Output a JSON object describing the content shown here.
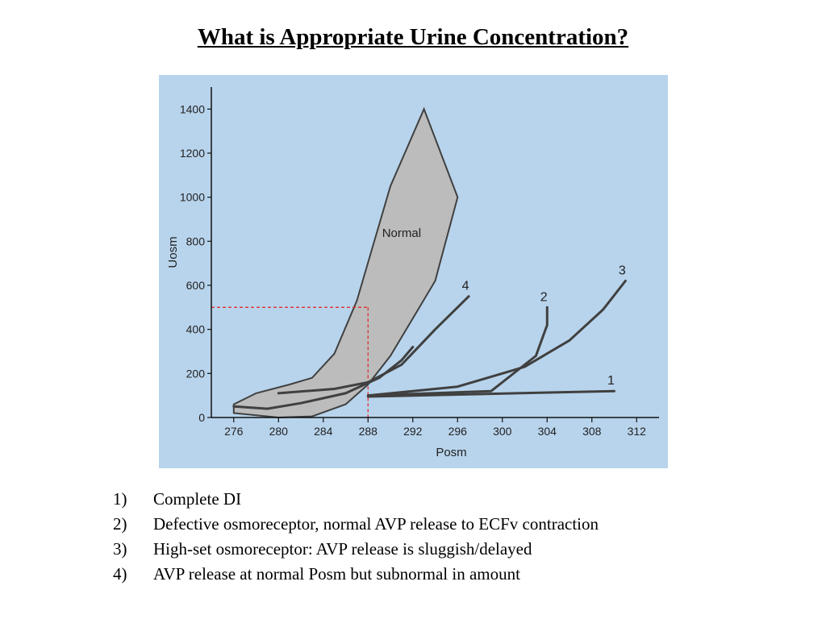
{
  "title": "What is Appropriate Urine Concentration?",
  "colors": {
    "figure_background": "#b8d4ec",
    "normal_band_fill": "#bcbcbc",
    "curve": "#404040",
    "reference_line": "#e03030"
  },
  "chart_data": {
    "type": "line",
    "xlabel": "Posm",
    "ylabel": "Uosm",
    "xlim": [
      274,
      314
    ],
    "ylim": [
      0,
      1500
    ],
    "xticks": [
      276,
      280,
      284,
      288,
      292,
      296,
      300,
      304,
      308,
      312
    ],
    "yticks": [
      0,
      200,
      400,
      600,
      800,
      1000,
      1200,
      1400
    ],
    "grid": false,
    "normal_region": {
      "label": "Normal",
      "upper": [
        [
          276,
          60
        ],
        [
          278,
          110
        ],
        [
          281,
          150
        ],
        [
          283,
          180
        ],
        [
          285,
          290
        ],
        [
          287,
          530
        ],
        [
          290,
          1050
        ],
        [
          293,
          1400
        ]
      ],
      "lower": [
        [
          276,
          20
        ],
        [
          280,
          0
        ],
        [
          283,
          5
        ],
        [
          286,
          60
        ],
        [
          288,
          150
        ],
        [
          290,
          280
        ],
        [
          292,
          450
        ],
        [
          294,
          620
        ],
        [
          296,
          1000
        ]
      ]
    },
    "series": [
      {
        "name": "1",
        "values": [
          [
            288,
            95
          ],
          [
            310,
            120
          ]
        ]
      },
      {
        "name": "2",
        "values": [
          [
            288,
            100
          ],
          [
            299,
            120
          ],
          [
            303,
            280
          ],
          [
            304,
            420
          ],
          [
            304,
            500
          ]
        ]
      },
      {
        "name": "3",
        "values": [
          [
            288,
            100
          ],
          [
            296,
            140
          ],
          [
            302,
            230
          ],
          [
            306,
            350
          ],
          [
            309,
            490
          ],
          [
            311,
            620
          ]
        ]
      },
      {
        "name": "4",
        "values": [
          [
            280,
            110
          ],
          [
            285,
            130
          ],
          [
            288,
            160
          ],
          [
            291,
            240
          ],
          [
            294,
            400
          ],
          [
            297,
            550
          ]
        ]
      },
      {
        "name": "",
        "values": [
          [
            276,
            50
          ],
          [
            279,
            40
          ],
          [
            282,
            65
          ],
          [
            286,
            110
          ],
          [
            289,
            180
          ],
          [
            291,
            260
          ],
          [
            292,
            320
          ]
        ]
      }
    ],
    "reference": {
      "x": 288,
      "y": 500
    }
  },
  "notes": [
    {
      "num": "1)",
      "text": "Complete DI"
    },
    {
      "num": "2)",
      "text": "Defective osmoreceptor, normal AVP release to ECFv contraction"
    },
    {
      "num": "3)",
      "text": "High-set osmoreceptor: AVP release is sluggish/delayed"
    },
    {
      "num": "4)",
      "text": "AVP release at normal Posm but subnormal in amount"
    }
  ]
}
